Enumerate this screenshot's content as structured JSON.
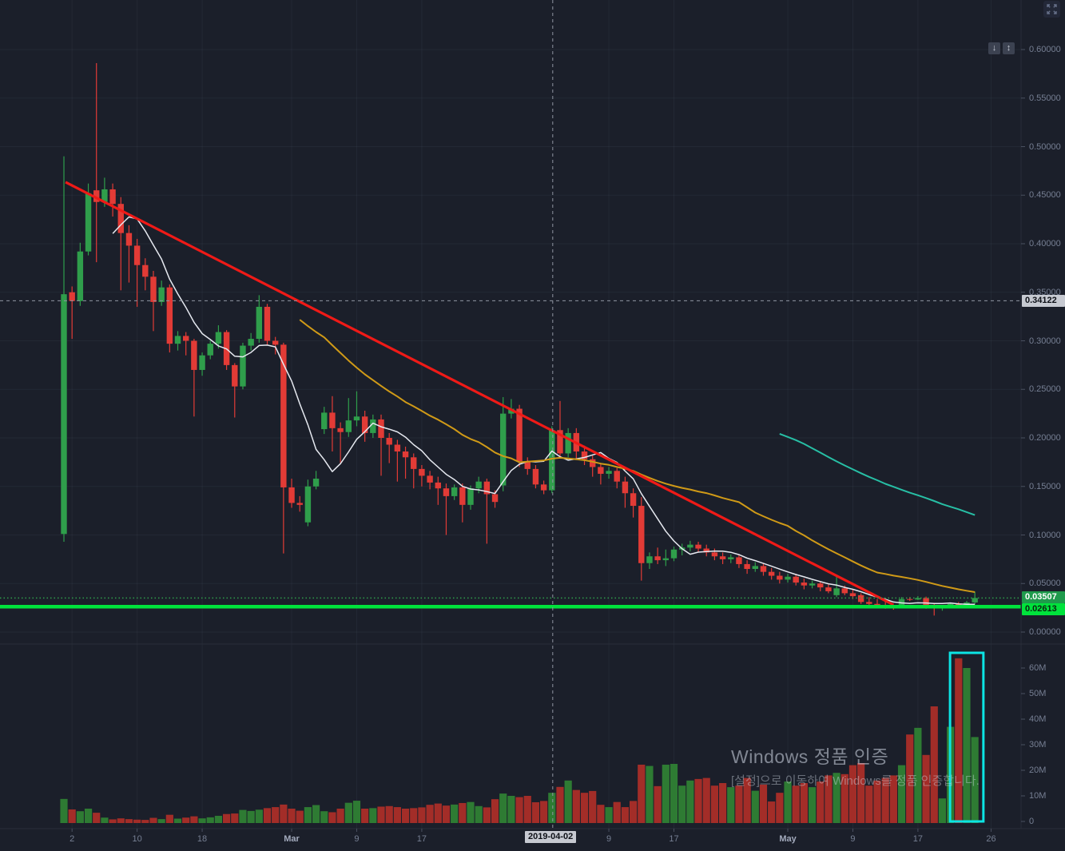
{
  "watermark": {
    "line1": "Windows 정품 인증",
    "line2": "[설정]으로 이동하여 Windows를 정품 인증합니다."
  },
  "toolbar": {
    "scroll_down_icon": "↓",
    "scroll_updown_icon": "↕",
    "fullscreen_icon_name": "fullscreen-corner-arrows"
  },
  "crosshair": {
    "price_label": "0.34122",
    "time_label": "2019-04-02",
    "price": 0.34122,
    "index": 60.1
  },
  "price_lines": {
    "last": {
      "label": "0.03507",
      "value": 0.03507,
      "color": "#1f9a4c",
      "line_style": "dotted"
    },
    "alert": {
      "label": "0.02613",
      "value": 0.02613,
      "color": "#00e33c",
      "line_style": "solid"
    }
  },
  "axes": {
    "price_ticks": [
      {
        "label": "0.60000",
        "value": 0.6
      },
      {
        "label": "0.55000",
        "value": 0.55
      },
      {
        "label": "0.50000",
        "value": 0.5
      },
      {
        "label": "0.45000",
        "value": 0.45
      },
      {
        "label": "0.40000",
        "value": 0.4
      },
      {
        "label": "0.35000",
        "value": 0.35
      },
      {
        "label": "0.30000",
        "value": 0.3
      },
      {
        "label": "0.25000",
        "value": 0.25
      },
      {
        "label": "0.20000",
        "value": 0.2
      },
      {
        "label": "0.15000",
        "value": 0.15
      },
      {
        "label": "0.10000",
        "value": 0.1
      },
      {
        "label": "0.05000",
        "value": 0.05
      },
      {
        "label": "0.00000",
        "value": 0.0
      }
    ],
    "volume_ticks": [
      {
        "label": "60M",
        "value": 60
      },
      {
        "label": "50M",
        "value": 50
      },
      {
        "label": "40M",
        "value": 40
      },
      {
        "label": "30M",
        "value": 30
      },
      {
        "label": "20M",
        "value": 20
      },
      {
        "label": "10M",
        "value": 10
      },
      {
        "label": "0",
        "value": 0
      }
    ],
    "time_ticks": [
      {
        "label": "2",
        "index": 1,
        "month": false
      },
      {
        "label": "10",
        "index": 9,
        "month": false
      },
      {
        "label": "18",
        "index": 17,
        "month": false
      },
      {
        "label": "Mar",
        "index": 28,
        "month": true
      },
      {
        "label": "9",
        "index": 36,
        "month": false
      },
      {
        "label": "17",
        "index": 44,
        "month": false
      },
      {
        "label": "9",
        "index": 67,
        "month": false
      },
      {
        "label": "17",
        "index": 75,
        "month": false
      },
      {
        "label": "May",
        "index": 89,
        "month": true
      },
      {
        "label": "9",
        "index": 97,
        "month": false
      },
      {
        "label": "17",
        "index": 105,
        "month": false
      },
      {
        "label": "26",
        "index": 114,
        "month": false
      }
    ]
  },
  "chart_data": {
    "type": "candlestick+volume",
    "timeframe": "1D",
    "date_range": "2019-02-01 to 2019-05-24",
    "price_axis": {
      "min": 0.0,
      "max": 0.62,
      "tick_interval": 0.05
    },
    "volume_axis": {
      "min": 0,
      "max": 65,
      "unit": "M",
      "tick_interval": 10
    },
    "colors": {
      "up": "#2f9e4b",
      "down": "#e23b36",
      "volume_up": "#2e7b33",
      "volume_down": "#a32d28",
      "background": "#1b1f2a",
      "grid": "rgba(140,152,178,0.08)"
    },
    "columns": [
      "open",
      "high",
      "low",
      "close",
      "volume_millions"
    ],
    "candles": [
      [
        0.101,
        0.49,
        0.093,
        0.348,
        8.8
      ],
      [
        0.35,
        0.356,
        0.302,
        0.341,
        4.7
      ],
      [
        0.341,
        0.401,
        0.336,
        0.392,
        4.0
      ],
      [
        0.392,
        0.462,
        0.388,
        0.452,
        5.0
      ],
      [
        0.455,
        0.586,
        0.381,
        0.443,
        3.4
      ],
      [
        0.443,
        0.468,
        0.438,
        0.456,
        1.5
      ],
      [
        0.456,
        0.462,
        0.428,
        0.441,
        0.8
      ],
      [
        0.441,
        0.448,
        0.352,
        0.411,
        1.2
      ],
      [
        0.411,
        0.419,
        0.36,
        0.398,
        0.9
      ],
      [
        0.398,
        0.405,
        0.335,
        0.378,
        0.7
      ],
      [
        0.378,
        0.385,
        0.352,
        0.366,
        0.6
      ],
      [
        0.366,
        0.372,
        0.31,
        0.34,
        1.4
      ],
      [
        0.34,
        0.362,
        0.336,
        0.355,
        0.9
      ],
      [
        0.355,
        0.358,
        0.288,
        0.297,
        2.6
      ],
      [
        0.297,
        0.31,
        0.29,
        0.305,
        1.1
      ],
      [
        0.305,
        0.309,
        0.285,
        0.3,
        1.5
      ],
      [
        0.3,
        0.302,
        0.222,
        0.27,
        2.0
      ],
      [
        0.27,
        0.288,
        0.264,
        0.285,
        1.2
      ],
      [
        0.285,
        0.3,
        0.281,
        0.297,
        1.6
      ],
      [
        0.297,
        0.316,
        0.292,
        0.309,
        2.2
      ],
      [
        0.309,
        0.311,
        0.27,
        0.275,
        2.9
      ],
      [
        0.275,
        0.277,
        0.221,
        0.253,
        3.1
      ],
      [
        0.253,
        0.298,
        0.25,
        0.295,
        4.5
      ],
      [
        0.295,
        0.308,
        0.29,
        0.302,
        4.1
      ],
      [
        0.302,
        0.347,
        0.298,
        0.335,
        4.6
      ],
      [
        0.335,
        0.338,
        0.296,
        0.3,
        5.2
      ],
      [
        0.3,
        0.304,
        0.286,
        0.296,
        5.6
      ],
      [
        0.296,
        0.298,
        0.081,
        0.149,
        6.6
      ],
      [
        0.149,
        0.158,
        0.128,
        0.133,
        5.0
      ],
      [
        0.133,
        0.14,
        0.124,
        0.131,
        4.2
      ],
      [
        0.113,
        0.157,
        0.109,
        0.15,
        5.6
      ],
      [
        0.15,
        0.166,
        0.147,
        0.158,
        6.4
      ],
      [
        0.209,
        0.232,
        0.204,
        0.226,
        4.0
      ],
      [
        0.226,
        0.243,
        0.186,
        0.21,
        3.6
      ],
      [
        0.21,
        0.216,
        0.174,
        0.206,
        5.0
      ],
      [
        0.206,
        0.241,
        0.201,
        0.218,
        7.3
      ],
      [
        0.218,
        0.248,
        0.212,
        0.222,
        8.1
      ],
      [
        0.222,
        0.228,
        0.196,
        0.205,
        5.0
      ],
      [
        0.205,
        0.224,
        0.2,
        0.219,
        5.2
      ],
      [
        0.219,
        0.224,
        0.161,
        0.2,
        5.8
      ],
      [
        0.2,
        0.205,
        0.174,
        0.193,
        6.0
      ],
      [
        0.193,
        0.198,
        0.155,
        0.186,
        5.6
      ],
      [
        0.186,
        0.191,
        0.158,
        0.18,
        5.0
      ],
      [
        0.18,
        0.184,
        0.148,
        0.168,
        5.2
      ],
      [
        0.168,
        0.172,
        0.15,
        0.161,
        5.5
      ],
      [
        0.161,
        0.166,
        0.147,
        0.154,
        6.5
      ],
      [
        0.154,
        0.16,
        0.131,
        0.148,
        7.0
      ],
      [
        0.148,
        0.153,
        0.1,
        0.14,
        6.2
      ],
      [
        0.14,
        0.152,
        0.136,
        0.149,
        6.6
      ],
      [
        0.149,
        0.153,
        0.113,
        0.131,
        7.2
      ],
      [
        0.131,
        0.151,
        0.126,
        0.148,
        7.6
      ],
      [
        0.148,
        0.16,
        0.143,
        0.155,
        6.0
      ],
      [
        0.155,
        0.158,
        0.091,
        0.142,
        5.5
      ],
      [
        0.142,
        0.146,
        0.128,
        0.134,
        8.7
      ],
      [
        0.151,
        0.242,
        0.145,
        0.225,
        10.9
      ],
      [
        0.225,
        0.24,
        0.22,
        0.23,
        10.0
      ],
      [
        0.23,
        0.234,
        0.17,
        0.176,
        9.5
      ],
      [
        0.176,
        0.18,
        0.162,
        0.168,
        10.0
      ],
      [
        0.168,
        0.172,
        0.148,
        0.152,
        7.5
      ],
      [
        0.152,
        0.156,
        0.142,
        0.146,
        8.0
      ],
      [
        0.146,
        0.212,
        0.143,
        0.208,
        11.2
      ],
      [
        0.208,
        0.238,
        0.18,
        0.184,
        13.5
      ],
      [
        0.184,
        0.21,
        0.18,
        0.205,
        16.0
      ],
      [
        0.205,
        0.21,
        0.178,
        0.186,
        12.3
      ],
      [
        0.186,
        0.192,
        0.172,
        0.178,
        11.2
      ],
      [
        0.178,
        0.183,
        0.16,
        0.17,
        11.9
      ],
      [
        0.17,
        0.174,
        0.152,
        0.163,
        6.5
      ],
      [
        0.163,
        0.17,
        0.158,
        0.166,
        5.6
      ],
      [
        0.166,
        0.169,
        0.148,
        0.155,
        7.6
      ],
      [
        0.155,
        0.16,
        0.128,
        0.143,
        5.6
      ],
      [
        0.143,
        0.148,
        0.118,
        0.13,
        8.0
      ],
      [
        0.13,
        0.139,
        0.053,
        0.071,
        22.2
      ],
      [
        0.071,
        0.082,
        0.065,
        0.078,
        21.7
      ],
      [
        0.078,
        0.087,
        0.07,
        0.074,
        13.8
      ],
      [
        0.074,
        0.085,
        0.068,
        0.076,
        22.2
      ],
      [
        0.076,
        0.088,
        0.073,
        0.085,
        22.5
      ],
      [
        0.085,
        0.091,
        0.079,
        0.087,
        14.0
      ],
      [
        0.087,
        0.094,
        0.083,
        0.09,
        16.0
      ],
      [
        0.09,
        0.093,
        0.082,
        0.086,
        16.6
      ],
      [
        0.086,
        0.09,
        0.078,
        0.082,
        17.0
      ],
      [
        0.082,
        0.086,
        0.074,
        0.078,
        14.0
      ],
      [
        0.078,
        0.082,
        0.07,
        0.075,
        15.0
      ],
      [
        0.075,
        0.08,
        0.071,
        0.077,
        13.4
      ],
      [
        0.077,
        0.08,
        0.066,
        0.07,
        14.0
      ],
      [
        0.07,
        0.074,
        0.06,
        0.065,
        17.0
      ],
      [
        0.065,
        0.072,
        0.062,
        0.068,
        12.0
      ],
      [
        0.068,
        0.071,
        0.058,
        0.062,
        14.4
      ],
      [
        0.062,
        0.066,
        0.054,
        0.058,
        7.8
      ],
      [
        0.058,
        0.062,
        0.05,
        0.054,
        11.2
      ],
      [
        0.054,
        0.06,
        0.051,
        0.057,
        15.6
      ],
      [
        0.057,
        0.06,
        0.048,
        0.051,
        14.0
      ],
      [
        0.051,
        0.055,
        0.044,
        0.048,
        15.0
      ],
      [
        0.048,
        0.053,
        0.045,
        0.05,
        13.4
      ],
      [
        0.05,
        0.052,
        0.042,
        0.046,
        15.6
      ],
      [
        0.046,
        0.049,
        0.04,
        0.042,
        18.0
      ],
      [
        0.038,
        0.058,
        0.036,
        0.045,
        19.0
      ],
      [
        0.045,
        0.048,
        0.038,
        0.04,
        18.5
      ],
      [
        0.04,
        0.044,
        0.034,
        0.037,
        22.0
      ],
      [
        0.038,
        0.04,
        0.029,
        0.031,
        22.8
      ],
      [
        0.031,
        0.036,
        0.027,
        0.029,
        14.0
      ],
      [
        0.029,
        0.034,
        0.026,
        0.028,
        16.0
      ],
      [
        0.028,
        0.032,
        0.024,
        0.026,
        17.0
      ],
      [
        0.026,
        0.028,
        0.023,
        0.0255,
        18.0
      ],
      [
        0.0255,
        0.036,
        0.0245,
        0.034,
        22.0
      ],
      [
        0.034,
        0.036,
        0.032,
        0.0335,
        34.0
      ],
      [
        0.0335,
        0.037,
        0.033,
        0.035,
        36.6
      ],
      [
        0.035,
        0.0365,
        0.024,
        0.028,
        26.0
      ],
      [
        0.028,
        0.03,
        0.017,
        0.0245,
        45.0
      ],
      [
        0.0245,
        0.028,
        0.022,
        0.0255,
        9.0
      ],
      [
        0.0255,
        0.03,
        0.0245,
        0.029,
        37.0
      ],
      [
        0.029,
        0.031,
        0.0255,
        0.0275,
        63.8
      ],
      [
        0.0275,
        0.032,
        0.0265,
        0.0305,
        60.0
      ],
      [
        0.0305,
        0.0414,
        0.029,
        0.0351,
        33.0
      ]
    ],
    "overlays": [
      {
        "name": "sma-7",
        "type": "sma",
        "period": 7,
        "color": "#e6e9f0",
        "width": 1.5
      },
      {
        "name": "sma-30",
        "type": "sma",
        "period": 30,
        "color": "#d09a17",
        "width": 2
      },
      {
        "name": "sma-89",
        "type": "sma",
        "period": 89,
        "color": "#27bfa5",
        "width": 2
      }
    ],
    "annotations": [
      {
        "type": "trendline",
        "color": "#ef1a17",
        "width": 3.2,
        "from": {
          "index": 0.2,
          "price": 0.4634
        },
        "to": {
          "index": 102,
          "price": 0.028
        }
      },
      {
        "type": "hline",
        "price": 0.02613,
        "color": "#00e33c",
        "width": 4.5
      },
      {
        "type": "highlight-rect",
        "pane": "volume",
        "color": "#0ce4e4",
        "width": 3,
        "from_index": 108.95,
        "to_index": 113.05
      }
    ]
  }
}
